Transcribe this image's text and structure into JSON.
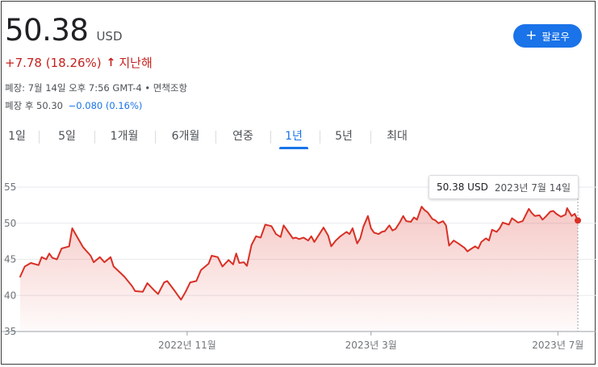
{
  "quote": {
    "price": "50.38",
    "currency": "USD",
    "change": "+7.78 (18.26%)",
    "change_arrow": "↑",
    "change_period": "지난해",
    "close_info": "폐장: 7월 14일 오후 7:56 GMT-4 • 면책조항",
    "after_hours_label": "폐장 후 50.30",
    "after_hours_change": "−0.080 (0.16%)"
  },
  "follow_button": {
    "icon": "plus-icon",
    "label": "팔로우"
  },
  "range_tabs": [
    {
      "label": "1일",
      "active": false
    },
    {
      "label": "5일",
      "active": false
    },
    {
      "label": "1개월",
      "active": false
    },
    {
      "label": "6개월",
      "active": false
    },
    {
      "label": "연중",
      "active": false
    },
    {
      "label": "1년",
      "active": true
    },
    {
      "label": "5년",
      "active": false
    },
    {
      "label": "최대",
      "active": false
    }
  ],
  "tooltip": {
    "price": "50.38 USD",
    "date": "2023년 7월 14일"
  },
  "colors": {
    "line": "#d93025",
    "accent": "#1a73e8",
    "negative_change": "#c5221f"
  },
  "chart_data": {
    "type": "area",
    "ylim": [
      35,
      55
    ],
    "y_ticks": [
      55,
      50,
      45,
      40,
      35
    ],
    "x_ticks": [
      {
        "label": "2022년 11월",
        "date": "2022-11-01"
      },
      {
        "label": "2023년 3월",
        "date": "2023-03-01"
      },
      {
        "label": "2023년 7월",
        "date": "2023-07-01"
      }
    ],
    "x_range": [
      "2022-07-15",
      "2023-07-14"
    ],
    "grid": true,
    "series": [
      {
        "points": [
          [
            "2022-07-15",
            42.6
          ],
          [
            "2022-07-18",
            44.0
          ],
          [
            "2022-07-22",
            44.5
          ],
          [
            "2022-07-27",
            44.2
          ],
          [
            "2022-07-29",
            45.3
          ],
          [
            "2022-08-01",
            45.0
          ],
          [
            "2022-08-03",
            45.8
          ],
          [
            "2022-08-05",
            45.2
          ],
          [
            "2022-08-08",
            45.0
          ],
          [
            "2022-08-11",
            46.5
          ],
          [
            "2022-08-16",
            46.8
          ],
          [
            "2022-08-18",
            49.3
          ],
          [
            "2022-08-22",
            47.8
          ],
          [
            "2022-08-25",
            46.7
          ],
          [
            "2022-08-30",
            45.5
          ],
          [
            "2022-09-01",
            44.6
          ],
          [
            "2022-09-05",
            45.3
          ],
          [
            "2022-09-08",
            44.6
          ],
          [
            "2022-09-12",
            45.3
          ],
          [
            "2022-09-14",
            44.0
          ],
          [
            "2022-09-19",
            43.0
          ],
          [
            "2022-09-21",
            42.6
          ],
          [
            "2022-09-26",
            41.3
          ],
          [
            "2022-09-28",
            40.6
          ],
          [
            "2022-10-03",
            40.5
          ],
          [
            "2022-10-06",
            41.7
          ],
          [
            "2022-10-10",
            40.8
          ],
          [
            "2022-10-13",
            40.2
          ],
          [
            "2022-10-17",
            41.8
          ],
          [
            "2022-10-19",
            42.0
          ],
          [
            "2022-10-24",
            40.6
          ],
          [
            "2022-10-26",
            40.0
          ],
          [
            "2022-10-28",
            39.4
          ],
          [
            "2022-10-31",
            40.5
          ],
          [
            "2022-11-03",
            41.8
          ],
          [
            "2022-11-07",
            42.0
          ],
          [
            "2022-11-10",
            43.5
          ],
          [
            "2022-11-15",
            44.4
          ],
          [
            "2022-11-17",
            45.5
          ],
          [
            "2022-11-21",
            45.3
          ],
          [
            "2022-11-24",
            44.0
          ],
          [
            "2022-11-28",
            44.9
          ],
          [
            "2022-12-01",
            44.3
          ],
          [
            "2022-12-03",
            45.8
          ],
          [
            "2022-12-05",
            44.5
          ],
          [
            "2022-12-08",
            44.6
          ],
          [
            "2022-12-10",
            44.1
          ],
          [
            "2022-12-13",
            47.0
          ],
          [
            "2022-12-16",
            48.2
          ],
          [
            "2022-12-19",
            48.0
          ],
          [
            "2022-12-22",
            49.8
          ],
          [
            "2022-12-26",
            49.6
          ],
          [
            "2022-12-29",
            48.5
          ],
          [
            "2023-01-01",
            48.1
          ],
          [
            "2023-01-03",
            49.7
          ],
          [
            "2023-01-06",
            48.8
          ],
          [
            "2023-01-09",
            47.9
          ],
          [
            "2023-01-11",
            48.0
          ],
          [
            "2023-01-13",
            47.8
          ],
          [
            "2023-01-16",
            48.0
          ],
          [
            "2023-01-19",
            47.6
          ],
          [
            "2023-01-21",
            48.2
          ],
          [
            "2023-01-23",
            47.4
          ],
          [
            "2023-01-26",
            48.4
          ],
          [
            "2023-01-29",
            49.4
          ],
          [
            "2023-02-01",
            48.3
          ],
          [
            "2023-02-03",
            46.8
          ],
          [
            "2023-02-06",
            47.6
          ],
          [
            "2023-02-09",
            48.2
          ],
          [
            "2023-02-13",
            48.8
          ],
          [
            "2023-02-15",
            48.5
          ],
          [
            "2023-02-17",
            49.3
          ],
          [
            "2023-02-20",
            47.2
          ],
          [
            "2023-02-22",
            47.9
          ],
          [
            "2023-02-24",
            49.5
          ],
          [
            "2023-02-27",
            51.0
          ],
          [
            "2023-03-01",
            49.3
          ],
          [
            "2023-03-03",
            48.7
          ],
          [
            "2023-03-06",
            48.5
          ],
          [
            "2023-03-08",
            48.8
          ],
          [
            "2023-03-10",
            48.9
          ],
          [
            "2023-03-13",
            49.7
          ],
          [
            "2023-03-15",
            49.0
          ],
          [
            "2023-03-17",
            49.2
          ],
          [
            "2023-03-20",
            50.2
          ],
          [
            "2023-03-22",
            51.0
          ],
          [
            "2023-03-24",
            50.3
          ],
          [
            "2023-03-27",
            50.2
          ],
          [
            "2023-03-29",
            50.8
          ],
          [
            "2023-03-31",
            50.5
          ],
          [
            "2023-04-03",
            52.3
          ],
          [
            "2023-04-05",
            51.8
          ],
          [
            "2023-04-07",
            51.5
          ],
          [
            "2023-04-10",
            50.6
          ],
          [
            "2023-04-12",
            50.4
          ],
          [
            "2023-04-14",
            50.0
          ],
          [
            "2023-04-17",
            50.3
          ],
          [
            "2023-04-19",
            49.7
          ],
          [
            "2023-04-21",
            46.9
          ],
          [
            "2023-04-24",
            47.6
          ],
          [
            "2023-04-27",
            47.2
          ],
          [
            "2023-05-01",
            46.6
          ],
          [
            "2023-05-03",
            46.1
          ],
          [
            "2023-05-05",
            46.4
          ],
          [
            "2023-05-08",
            46.8
          ],
          [
            "2023-05-10",
            46.5
          ],
          [
            "2023-05-12",
            47.4
          ],
          [
            "2023-05-15",
            47.9
          ],
          [
            "2023-05-17",
            47.6
          ],
          [
            "2023-05-19",
            49.1
          ],
          [
            "2023-05-22",
            48.8
          ],
          [
            "2023-05-24",
            49.3
          ],
          [
            "2023-05-26",
            50.1
          ],
          [
            "2023-05-30",
            49.8
          ],
          [
            "2023-06-01",
            50.7
          ],
          [
            "2023-06-05",
            50.1
          ],
          [
            "2023-06-08",
            50.3
          ],
          [
            "2023-06-12",
            52.0
          ],
          [
            "2023-06-14",
            51.4
          ],
          [
            "2023-06-16",
            51.0
          ],
          [
            "2023-06-19",
            51.1
          ],
          [
            "2023-06-21",
            50.5
          ],
          [
            "2023-06-23",
            50.9
          ],
          [
            "2023-06-26",
            51.6
          ],
          [
            "2023-06-28",
            51.7
          ],
          [
            "2023-06-30",
            51.3
          ],
          [
            "2023-07-03",
            50.9
          ],
          [
            "2023-07-06",
            51.2
          ],
          [
            "2023-07-07",
            52.1
          ],
          [
            "2023-07-10",
            51.0
          ],
          [
            "2023-07-12",
            51.3
          ],
          [
            "2023-07-14",
            50.38
          ]
        ]
      }
    ]
  }
}
